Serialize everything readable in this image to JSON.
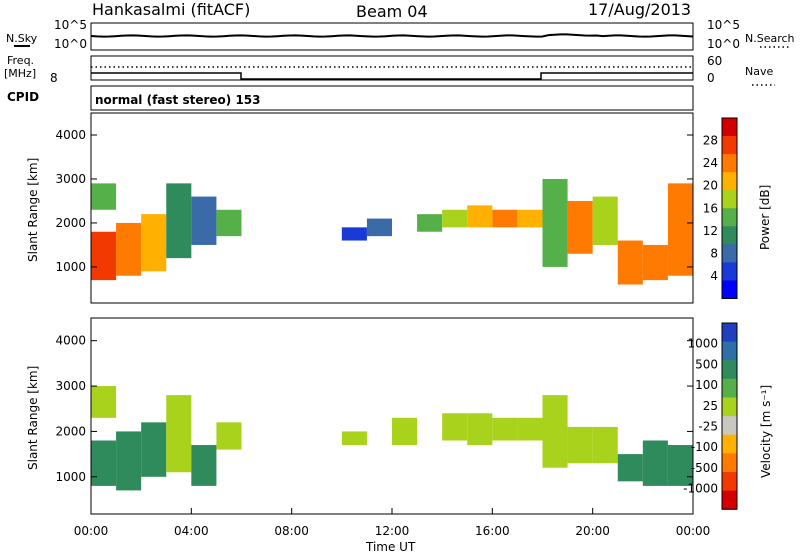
{
  "header": {
    "station": "Hankasalmi (fitACF)",
    "beam": "Beam 04",
    "date": "17/Aug/2013"
  },
  "noise_panel": {
    "left_label": "N.Sky",
    "right_label": "N.Search",
    "ticks": [
      "10^5",
      "10^0"
    ]
  },
  "freq_panel": {
    "left_label_1": "Freq.",
    "left_label_2": "[MHz]",
    "left_tick": "8",
    "right_label": "Nave",
    "right_ticks": [
      "60",
      "0"
    ]
  },
  "cpid": {
    "label": "CPID",
    "text": "normal (fast stereo) 153"
  },
  "chart_data": [
    {
      "type": "heatmap",
      "name": "power",
      "ylabel": "Slant Range [km]",
      "y_ticks": [
        "4000",
        "3000",
        "2000",
        "1000"
      ],
      "ylim": [
        180,
        4500
      ],
      "xlim": [
        0,
        24
      ],
      "colorbar": {
        "label": "Power [dB]",
        "ticks": [
          "28",
          "24",
          "20",
          "16",
          "12",
          "8",
          "4"
        ],
        "colors": [
          "#d40000",
          "#f23a00",
          "#ff7a00",
          "#ffb000",
          "#a8d21c",
          "#56b04a",
          "#2f8a5c",
          "#3a6aa8",
          "#1a3ad8",
          "#0000ff"
        ]
      },
      "x": [
        0,
        1,
        2,
        3,
        4,
        5,
        6,
        7,
        8,
        9,
        10,
        11,
        12,
        13,
        14,
        15,
        16,
        17,
        18,
        19,
        20,
        21,
        22,
        23
      ],
      "bands": [
        {
          "hour": 0,
          "range": [
            700,
            1800
          ],
          "value": 26
        },
        {
          "hour": 0,
          "range": [
            2300,
            2900
          ],
          "value": 14
        },
        {
          "hour": 1,
          "range": [
            800,
            2000
          ],
          "value": 24
        },
        {
          "hour": 2,
          "range": [
            900,
            2200
          ],
          "value": 20
        },
        {
          "hour": 3,
          "range": [
            1200,
            2900
          ],
          "value": 12
        },
        {
          "hour": 4,
          "range": [
            1500,
            2600
          ],
          "value": 10
        },
        {
          "hour": 5,
          "range": [
            1700,
            2300
          ],
          "value": 14
        },
        {
          "hour": 10,
          "range": [
            1600,
            1900
          ],
          "value": 6
        },
        {
          "hour": 11,
          "range": [
            1700,
            2100
          ],
          "value": 8
        },
        {
          "hour": 13,
          "range": [
            1800,
            2200
          ],
          "value": 14
        },
        {
          "hour": 14,
          "range": [
            1900,
            2300
          ],
          "value": 18
        },
        {
          "hour": 15,
          "range": [
            1900,
            2400
          ],
          "value": 20
        },
        {
          "hour": 16,
          "range": [
            1900,
            2300
          ],
          "value": 22
        },
        {
          "hour": 17,
          "range": [
            1900,
            2300
          ],
          "value": 20
        },
        {
          "hour": 18,
          "range": [
            1000,
            3000
          ],
          "value": 16
        },
        {
          "hour": 19,
          "range": [
            1300,
            2500
          ],
          "value": 22
        },
        {
          "hour": 20,
          "range": [
            1500,
            2600
          ],
          "value": 18
        },
        {
          "hour": 21,
          "range": [
            600,
            1600
          ],
          "value": 24
        },
        {
          "hour": 22,
          "range": [
            700,
            1500
          ],
          "value": 24
        },
        {
          "hour": 23,
          "range": [
            800,
            2900
          ],
          "value": 22
        }
      ]
    },
    {
      "type": "heatmap",
      "name": "velocity",
      "ylabel": "Slant Range [km]",
      "y_ticks": [
        "4000",
        "3000",
        "2000",
        "1000"
      ],
      "ylim": [
        180,
        4500
      ],
      "xlim": [
        0,
        24
      ],
      "xlabel": "Time UT",
      "x_ticks": [
        "00:00",
        "04:00",
        "08:00",
        "12:00",
        "16:00",
        "20:00",
        "00:00"
      ],
      "colorbar": {
        "label": "Velocity [m s⁻¹]",
        "ticks": [
          "1000",
          "500",
          "100",
          "25",
          "-25",
          "-100",
          "-500",
          "-1000"
        ],
        "colors": [
          "#1f3fbf",
          "#2e6fa8",
          "#2f8a5c",
          "#56b04a",
          "#a8d21c",
          "#c8c8c0",
          "#ffb000",
          "#ff7a00",
          "#f23a00",
          "#d40000"
        ]
      },
      "x": [
        0,
        1,
        2,
        3,
        4,
        5,
        6,
        7,
        8,
        9,
        10,
        11,
        12,
        13,
        14,
        15,
        16,
        17,
        18,
        19,
        20,
        21,
        22,
        23
      ],
      "bands": [
        {
          "hour": 0,
          "range": [
            800,
            1800
          ],
          "value": 120
        },
        {
          "hour": 0,
          "range": [
            2300,
            3000
          ],
          "value": 0
        },
        {
          "hour": 1,
          "range": [
            700,
            2000
          ],
          "value": 200
        },
        {
          "hour": 2,
          "range": [
            1000,
            2200
          ],
          "value": 150
        },
        {
          "hour": 3,
          "range": [
            1100,
            2800
          ],
          "value": 0
        },
        {
          "hour": 4,
          "range": [
            800,
            1700
          ],
          "value": 100
        },
        {
          "hour": 5,
          "range": [
            1600,
            2200
          ],
          "value": 0
        },
        {
          "hour": 10,
          "range": [
            1700,
            2000
          ],
          "value": 0
        },
        {
          "hour": 12,
          "range": [
            1700,
            2300
          ],
          "value": 0
        },
        {
          "hour": 14,
          "range": [
            1800,
            2400
          ],
          "value": 0
        },
        {
          "hour": 15,
          "range": [
            1700,
            2400
          ],
          "value": 0
        },
        {
          "hour": 16,
          "range": [
            1800,
            2300
          ],
          "value": 0
        },
        {
          "hour": 17,
          "range": [
            1800,
            2300
          ],
          "value": 0
        },
        {
          "hour": 18,
          "range": [
            1200,
            2800
          ],
          "value": 0
        },
        {
          "hour": 19,
          "range": [
            1300,
            2100
          ],
          "value": 0
        },
        {
          "hour": 20,
          "range": [
            1300,
            2100
          ],
          "value": 0
        },
        {
          "hour": 21,
          "range": [
            900,
            1500
          ],
          "value": 300
        },
        {
          "hour": 22,
          "range": [
            800,
            1800
          ],
          "value": 300
        },
        {
          "hour": 23,
          "range": [
            800,
            1700
          ],
          "value": 250
        }
      ]
    }
  ]
}
